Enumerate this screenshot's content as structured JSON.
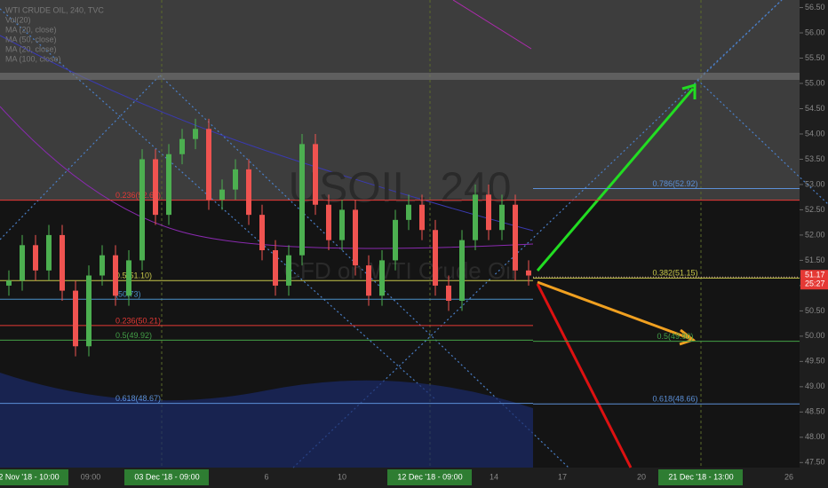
{
  "chart_data": {
    "type": "candlestick",
    "legend_lines": [
      "WTI CRUDE OIL, 240, TVC",
      "Vol(20)",
      "MA (20, close)",
      "MA (50, close)",
      "MA (20, close)",
      "MA (100, close)"
    ],
    "watermark": "USOIL, 240",
    "watermark_sub": "CFD on WTI Crude Oil",
    "x_labels": [
      "02 Nov '18 - 10:00",
      "09:00",
      "03 Dec '18 - 09:00",
      "6",
      "10",
      "12 Dec '18 - 09:00",
      "14",
      "17",
      "20",
      "21 Dec '18 - 13:00",
      "26"
    ],
    "ylim": [
      47.4,
      56.65
    ],
    "yticks": [
      {
        "value": 47.5,
        "label": "47.50"
      },
      {
        "value": 48,
        "label": "48.00"
      },
      {
        "value": 48.5,
        "label": "48.50"
      },
      {
        "value": 49,
        "label": "49.00"
      },
      {
        "value": 49.5,
        "label": "49.50"
      },
      {
        "value": 50,
        "label": "50.00"
      },
      {
        "value": 50.5,
        "label": "50.50"
      },
      {
        "value": 51,
        "label": "51.00"
      },
      {
        "value": 51.5,
        "label": "51.50"
      },
      {
        "value": 52,
        "label": "52.00"
      },
      {
        "value": 52.5,
        "label": "52.50"
      },
      {
        "value": 53,
        "label": "53.00"
      },
      {
        "value": 53.5,
        "label": "53.50"
      },
      {
        "value": 54,
        "label": "54.00"
      },
      {
        "value": 54.5,
        "label": "54.50"
      },
      {
        "value": 55,
        "label": "55.00"
      },
      {
        "value": 55.5,
        "label": "55.50"
      },
      {
        "value": 56,
        "label": "56.00"
      },
      {
        "value": 56.5,
        "label": "56.50"
      }
    ],
    "open": [
      51.0,
      51.1,
      51.8,
      51.3,
      52.0,
      50.9,
      49.8,
      51.2,
      51.6,
      50.8,
      51.5,
      53.5,
      52.4,
      53.6,
      53.9,
      54.1,
      52.7,
      52.9,
      53.3,
      52.4,
      51.7,
      51.0,
      51.6,
      53.8,
      52.6,
      51.9,
      52.5,
      51.4,
      50.8,
      51.5,
      52.3,
      52.6,
      52.1,
      51.0,
      50.7,
      51.9,
      52.8,
      52.1,
      52.6,
      51.3
    ],
    "high": [
      51.3,
      52.0,
      52.0,
      52.2,
      52.2,
      51.1,
      51.4,
      51.8,
      51.8,
      51.7,
      53.7,
      53.7,
      53.8,
      54.1,
      54.3,
      54.3,
      53.1,
      53.5,
      53.5,
      52.6,
      51.9,
      51.8,
      54.0,
      54.0,
      52.8,
      52.7,
      52.7,
      51.6,
      51.7,
      52.5,
      52.8,
      52.8,
      52.3,
      51.2,
      52.1,
      53.0,
      53.0,
      52.8,
      52.8,
      51.5
    ],
    "low": [
      50.8,
      50.9,
      51.1,
      51.1,
      50.7,
      49.6,
      49.6,
      51.0,
      50.6,
      50.6,
      51.3,
      52.2,
      52.2,
      53.4,
      53.7,
      52.5,
      52.5,
      52.7,
      52.2,
      51.5,
      50.8,
      50.8,
      51.4,
      52.4,
      51.7,
      51.7,
      51.2,
      50.6,
      50.6,
      51.3,
      52.1,
      51.9,
      50.8,
      50.5,
      50.5,
      51.7,
      51.9,
      51.9,
      51.1,
      51.0
    ],
    "close": [
      51.1,
      51.8,
      51.3,
      52.0,
      50.9,
      49.8,
      51.2,
      51.6,
      50.8,
      51.5,
      53.5,
      52.4,
      53.6,
      53.9,
      54.1,
      52.7,
      52.9,
      53.3,
      52.4,
      51.7,
      51.0,
      51.6,
      53.8,
      52.6,
      51.9,
      52.5,
      51.4,
      50.8,
      51.5,
      52.3,
      52.6,
      52.1,
      51.0,
      50.7,
      51.9,
      52.8,
      52.1,
      52.6,
      51.3,
      51.2
    ],
    "up_color": "#4caf50",
    "down_color": "#ef5350",
    "levels": [
      {
        "value": 52.92,
        "label": "0.786(52.92)",
        "color": "#5b8fd6",
        "side": "right"
      },
      {
        "value": 52.69,
        "label": "0.236(52.69)",
        "color": "#e53935",
        "side": "both"
      },
      {
        "value": 51.15,
        "label": "0.382(51.15)",
        "color": "#c8c84a",
        "side": "right"
      },
      {
        "value": 51.1,
        "label": "0.5(51.10)",
        "color": "#c8c84a",
        "side": "left"
      },
      {
        "value": 50.73,
        "label": "(50.73)",
        "color": "#4a90c8",
        "side": "left"
      },
      {
        "value": 50.21,
        "label": "0.236(50.21)",
        "color": "#e53935",
        "side": "left"
      },
      {
        "value": 49.92,
        "label": "0.5(49.92)",
        "color": "#43a047",
        "side": "left"
      },
      {
        "value": 49.9,
        "label": "0.5(49.90)",
        "color": "#43a047",
        "side": "right"
      },
      {
        "value": 48.67,
        "label": "0.618(48.67)",
        "color": "#5b8fd6",
        "side": "left"
      },
      {
        "value": 48.66,
        "label": "0.618(48.66)",
        "color": "#5b8fd6",
        "side": "right"
      }
    ],
    "last_price": {
      "value": 51.17,
      "label": "51.17"
    },
    "countdown": "25:27"
  }
}
